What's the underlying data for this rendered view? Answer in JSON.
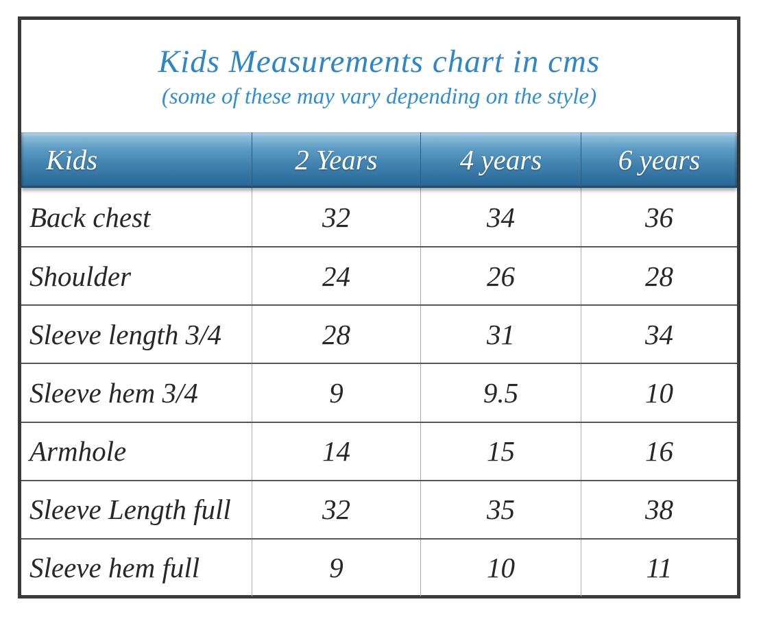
{
  "page": {
    "title": "Kids Measurements chart in cms",
    "subtitle": "(some of these may vary depending on the style)"
  },
  "table": {
    "columns": [
      "Kids",
      "2 Years",
      "4 years",
      "6 years"
    ],
    "rows": [
      {
        "label": "Back chest",
        "values": [
          "32",
          "34",
          "36"
        ]
      },
      {
        "label": "Shoulder",
        "values": [
          "24",
          "26",
          "28"
        ]
      },
      {
        "label": "Sleeve length 3/4",
        "values": [
          "28",
          "31",
          "34"
        ]
      },
      {
        "label": "Sleeve hem 3/4",
        "values": [
          "9",
          "9.5",
          "10"
        ]
      },
      {
        "label": "Armhole",
        "values": [
          "14",
          "15",
          "16"
        ]
      },
      {
        "label": "Sleeve Length full",
        "values": [
          "32",
          "35",
          "38"
        ]
      },
      {
        "label": "Sleeve hem full",
        "values": [
          "9",
          "10",
          "11"
        ]
      }
    ]
  },
  "colors": {
    "title_text": "#2e86c8",
    "subtitle_text": "#2f8ed4",
    "header_text": "#ffffff",
    "header_gradient_top": "#c3dcee",
    "header_gradient_mid": "#4081ae",
    "header_gradient_bottom": "#2b6996",
    "header_divider": "#2a5a7d",
    "body_text": "#272727",
    "frame_border": "#3a3a3a",
    "row_divider": "#565656",
    "column_divider": "#ababab"
  }
}
